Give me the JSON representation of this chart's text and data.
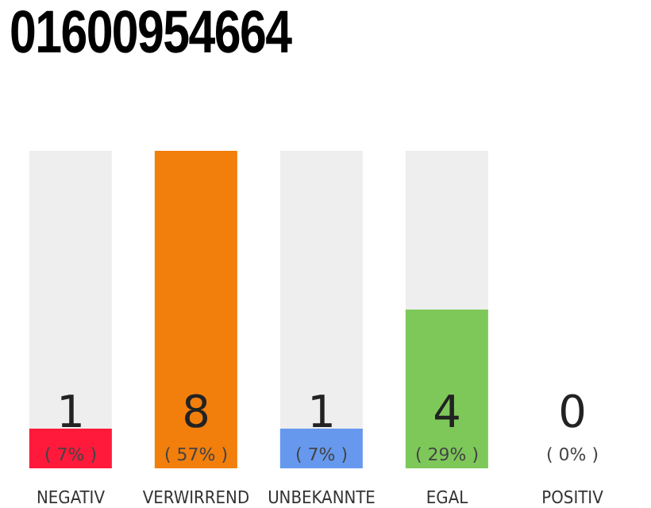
{
  "chart_data": {
    "type": "bar",
    "title": "01600954664",
    "categories": [
      "NEGATIV",
      "VERWIRREND",
      "UNBEKANNTE",
      "EGAL",
      "POSITIV"
    ],
    "values": [
      1,
      8,
      1,
      4,
      0
    ],
    "colors": [
      "#ff1a3c",
      "#f27e0c",
      "#6699ee",
      "#7ec85a",
      "#cccccc"
    ],
    "ylim": [
      0,
      8
    ],
    "tick_labels": "x",
    "data_labels": true,
    "grid": false,
    "legend": false,
    "annotations": [
      "( 7% )",
      "( 57% )",
      "( 7% )",
      "( 29% )",
      "( 0% )"
    ]
  }
}
